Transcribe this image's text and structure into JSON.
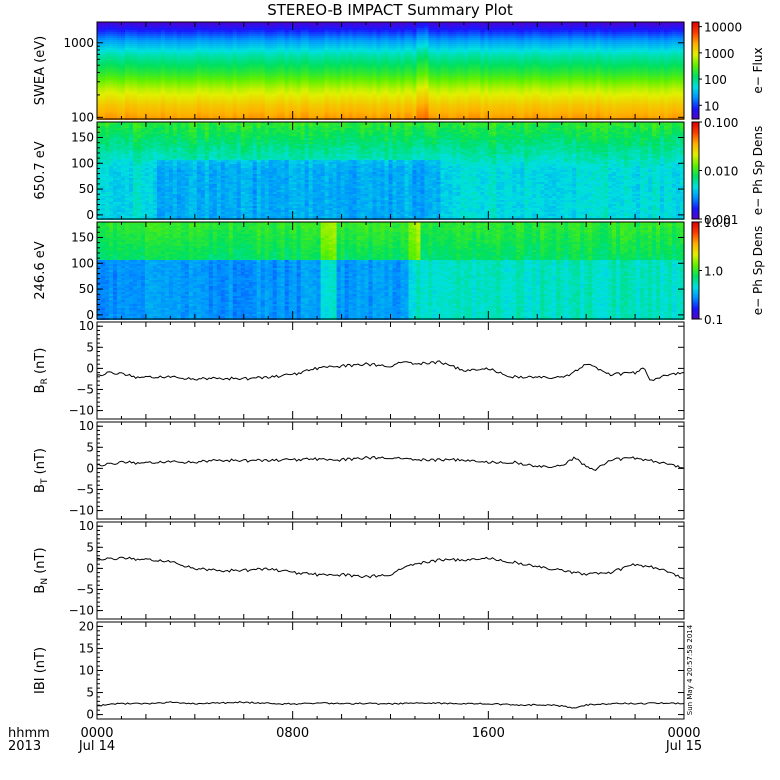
{
  "title": "STEREO-B IMPACT Summary Plot",
  "stamp": "Sun May  4 20:57:58 2014",
  "time_axis": {
    "corner_top": "hhmm",
    "corner_bottom": "2013",
    "ticks": [
      {
        "t": 0,
        "top": "0000",
        "bottom": "Jul 14"
      },
      {
        "t": 8,
        "top": "0800",
        "bottom": ""
      },
      {
        "t": 16,
        "top": "1600",
        "bottom": ""
      },
      {
        "t": 24,
        "top": "0000",
        "bottom": "Jul 15"
      }
    ]
  },
  "colors": {
    "rainbow": [
      "#5a00c8",
      "#1818ff",
      "#0090ff",
      "#00e0e0",
      "#00e060",
      "#60f000",
      "#e0f000",
      "#ffb000",
      "#ff4000",
      "#e00000"
    ],
    "line": "#000000"
  },
  "chart_data": [
    {
      "type": "heatmap",
      "name": "swea",
      "ylabel": "SWEA (eV)",
      "yscale": "log",
      "ylim": [
        95,
        1900
      ],
      "yticks": [
        {
          "v": 100,
          "label": "100"
        },
        {
          "v": 1000,
          "label": "1000"
        }
      ],
      "colorbar": {
        "label": "e− Flux",
        "scale": "log",
        "range": [
          3,
          15000
        ],
        "ticks": [
          {
            "v": 10,
            "label": "10"
          },
          {
            "v": 100,
            "label": "100"
          },
          {
            "v": 1000,
            "label": "1000"
          },
          {
            "v": 10000,
            "label": "10000"
          }
        ]
      },
      "profile": [
        [
          100,
          0.8
        ],
        [
          150,
          0.74
        ],
        [
          250,
          0.63
        ],
        [
          400,
          0.5
        ],
        [
          700,
          0.38
        ],
        [
          1100,
          0.24
        ],
        [
          1500,
          0.12
        ],
        [
          1900,
          0.03
        ]
      ]
    },
    {
      "type": "heatmap",
      "name": "pad650",
      "ylabel": "650.7 eV",
      "yscale": "linear",
      "ylim": [
        -8,
        180
      ],
      "yticks": [
        {
          "v": 0,
          "label": "0"
        },
        {
          "v": 50,
          "label": "50"
        },
        {
          "v": 100,
          "label": "100"
        },
        {
          "v": 150,
          "label": "150"
        }
      ],
      "colorbar": {
        "label": "e− Ph Sp Dens",
        "scale": "log",
        "range": [
          0.001,
          0.1
        ],
        "ticks": [
          {
            "v": 0.001,
            "label": "0.001"
          },
          {
            "v": 0.01,
            "label": "0.010"
          },
          {
            "v": 0.1,
            "label": "0.100"
          }
        ]
      }
    },
    {
      "type": "heatmap",
      "name": "pad246",
      "ylabel": "246.6 eV",
      "yscale": "linear",
      "ylim": [
        -8,
        180
      ],
      "yticks": [
        {
          "v": 0,
          "label": "0"
        },
        {
          "v": 50,
          "label": "50"
        },
        {
          "v": 100,
          "label": "100"
        },
        {
          "v": 150,
          "label": "150"
        }
      ],
      "colorbar": {
        "label": "e− Ph Sp Dens",
        "scale": "log",
        "range": [
          0.1,
          10
        ],
        "ticks": [
          {
            "v": 0.1,
            "label": "0.1"
          },
          {
            "v": 1,
            "label": "1.0"
          },
          {
            "v": 10,
            "label": "10.0"
          }
        ]
      }
    },
    {
      "type": "line",
      "name": "br",
      "ylabel": "B",
      "ysub": "R",
      "yunit": " (nT)",
      "ylim": [
        -12,
        11
      ],
      "yticks": [
        {
          "v": -10,
          "label": "−10"
        },
        {
          "v": -5,
          "label": "−5"
        },
        {
          "v": 0,
          "label": "0"
        },
        {
          "v": 5,
          "label": "5"
        },
        {
          "v": 10,
          "label": "10"
        }
      ],
      "x": [
        0,
        0.5,
        1,
        1.5,
        2,
        3,
        4,
        5,
        6,
        7,
        8,
        9,
        9.5,
        10,
        11,
        12,
        12.5,
        13,
        14,
        15,
        16,
        17,
        18,
        19,
        19.3,
        20,
        21,
        22,
        22.4,
        22.6,
        23,
        24
      ],
      "y": [
        -2,
        -1,
        -1.2,
        -2,
        -2.2,
        -2.1,
        -2.5,
        -2.3,
        -2.5,
        -2,
        -1.5,
        0,
        0.5,
        0.5,
        1,
        0.5,
        1.5,
        1,
        1.5,
        -0.5,
        0,
        -2,
        -2,
        -2.2,
        -1.5,
        1,
        -1.5,
        -1,
        0,
        -3,
        -2,
        -1
      ]
    },
    {
      "type": "line",
      "name": "bt",
      "ylabel": "B",
      "ysub": "T",
      "yunit": " (nT)",
      "ylim": [
        -12,
        11
      ],
      "yticks": [
        {
          "v": -10,
          "label": "−10"
        },
        {
          "v": -5,
          "label": "−5"
        },
        {
          "v": 0,
          "label": "0"
        },
        {
          "v": 5,
          "label": "5"
        },
        {
          "v": 10,
          "label": "10"
        }
      ],
      "x": [
        0,
        1,
        2,
        3,
        4,
        5,
        6,
        7,
        8,
        9,
        10,
        11,
        12,
        13,
        14,
        15,
        16,
        17,
        18,
        19,
        19.5,
        20,
        20.3,
        21,
        22,
        23,
        24
      ],
      "y": [
        0.5,
        1.5,
        1.2,
        1.5,
        1.5,
        2,
        1.8,
        2,
        2,
        2.2,
        2,
        2.5,
        2.5,
        2,
        2,
        2,
        1.5,
        1.5,
        0.5,
        0.5,
        2.5,
        0.5,
        -0.5,
        2,
        2.5,
        1.5,
        0
      ]
    },
    {
      "type": "line",
      "name": "bn",
      "ylabel": "B",
      "ysub": "N",
      "yunit": " (nT)",
      "ylim": [
        -12,
        11
      ],
      "yticks": [
        {
          "v": -10,
          "label": "−10"
        },
        {
          "v": -5,
          "label": "−5"
        },
        {
          "v": 0,
          "label": "0"
        },
        {
          "v": 5,
          "label": "5"
        },
        {
          "v": 10,
          "label": "10"
        }
      ],
      "x": [
        0,
        1,
        2,
        3,
        4,
        5,
        6,
        7,
        8,
        9,
        10,
        11,
        12,
        12.5,
        13,
        14,
        15,
        16,
        17,
        18,
        19,
        20,
        21,
        22,
        22.5,
        23,
        24
      ],
      "y": [
        2,
        2.5,
        2,
        1.5,
        0,
        -0.5,
        -0.5,
        0,
        -1,
        -1.5,
        -1.5,
        -2,
        -1.5,
        0,
        1,
        2,
        2,
        2.5,
        1.5,
        0.5,
        -0.5,
        -1.5,
        -1,
        1,
        0.5,
        0,
        -2.5
      ]
    },
    {
      "type": "line",
      "name": "bmag",
      "ylabel": "IBI (nT)",
      "ylim": [
        -1,
        21
      ],
      "yticks": [
        {
          "v": 0,
          "label": "0"
        },
        {
          "v": 5,
          "label": "5"
        },
        {
          "v": 10,
          "label": "10"
        },
        {
          "v": 15,
          "label": "15"
        },
        {
          "v": 20,
          "label": "20"
        }
      ],
      "x": [
        0,
        1,
        2,
        3,
        4,
        5,
        6,
        7,
        8,
        9,
        10,
        11,
        12,
        13,
        14,
        15,
        16,
        17,
        18,
        19,
        19.5,
        20,
        21,
        22,
        23,
        24
      ],
      "y": [
        2,
        2.5,
        2.5,
        2.8,
        2.5,
        2.6,
        2.8,
        2.5,
        2.4,
        2.6,
        2.5,
        2.5,
        2.4,
        2.7,
        2.6,
        2.5,
        2.5,
        2.2,
        2.2,
        2,
        1.5,
        2.2,
        2.5,
        2.5,
        2.6,
        2.5
      ]
    }
  ]
}
